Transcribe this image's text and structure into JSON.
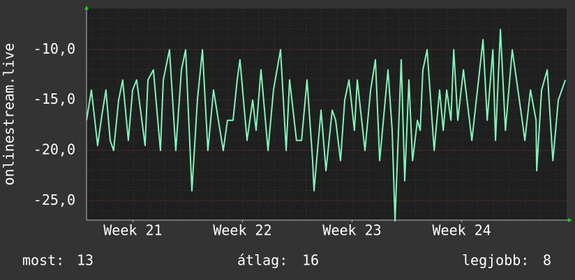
{
  "chart_data": {
    "type": "line",
    "y_label": "onlinestream.live",
    "x": [
      0.54,
      0.85,
      1.25,
      1.52,
      1.78,
      2.05,
      2.27,
      2.59,
      2.85,
      3.21,
      3.48,
      3.74,
      4.28,
      4.46,
      4.81,
      5.26,
      5.44,
      5.84,
      6.24,
      6.6,
      6.87,
      7.27,
      7.62,
      7.94,
      8.29,
      8.65,
      9.27,
      9.54,
      9.9,
      10.16,
      10.34,
      10.79,
      11.15,
      11.37,
      11.68,
      12.13,
      12.48,
      12.93,
      13.29,
      13.51,
      13.95,
      14.27,
      14.62,
      14.98,
      15.07,
      15.29,
      15.52,
      15.83,
      16.23,
      16.45,
      16.76,
      17.03,
      17.3,
      17.65,
      17.83,
      18.32,
      18.68,
      18.99,
      19.26,
      19.79,
      20.06,
      20.24,
      20.64,
      20.86,
      21.13,
      21.36,
      21.67,
      21.85,
      22.02,
      22.29,
      22.74,
      23.09,
      23.32,
      23.54,
      23.81,
      23.99,
      24.25,
      24.61,
      25.15,
      25.86,
      26.13,
      26.49,
      26.66,
      26.97,
      27.29,
      27.73,
      28.0,
      28.36,
      28.53,
      28.89,
      29.25,
      29.29,
      29.6,
      29.96,
      30.32,
      30.67,
      31.12
    ],
    "series": [
      {
        "color": "#80f5b8",
        "values": [
          -17,
          -14,
          -19.5,
          -16.5,
          -14,
          -19,
          -20,
          -15,
          -13,
          -19,
          -14,
          -13,
          -19.5,
          -13,
          -12,
          -20,
          -13,
          -10,
          -20,
          -12,
          -10,
          -24,
          -15,
          -10,
          -20,
          -14,
          -20,
          -17,
          -17,
          -13,
          -11,
          -19,
          -15,
          -18,
          -12,
          -20,
          -14,
          -10,
          -20,
          -13,
          -19,
          -19,
          -13,
          -21,
          -24,
          -20,
          -16,
          -22,
          -16,
          -17,
          -21,
          -15,
          -13,
          -18,
          -13,
          -20,
          -14,
          -11,
          -21,
          -12,
          -18,
          -27,
          -11,
          -23,
          -13,
          -21,
          -17,
          -18,
          -12,
          -10,
          -20,
          -14,
          -18,
          -14,
          -17,
          -10,
          -17,
          -12,
          -19,
          -9,
          -17,
          -10,
          -19,
          -8,
          -18,
          -10,
          -13,
          -17,
          -19,
          -14,
          -17,
          -22,
          -14,
          -12,
          -21,
          -15,
          -13
        ]
      }
    ],
    "xlim": [
      0.54,
      31.2
    ],
    "xticks": [
      {
        "value": 3.5,
        "label": "Week 21"
      },
      {
        "value": 10.5,
        "label": "Week 22"
      },
      {
        "value": 17.5,
        "label": "Week 23"
      },
      {
        "value": 24.5,
        "label": "Week 24"
      }
    ],
    "ylim": [
      -26.9,
      -5.9
    ],
    "yticks": [
      {
        "value": -25,
        "label": "-25,0"
      },
      {
        "value": -20,
        "label": "-20,0"
      },
      {
        "value": -15,
        "label": "-15,0"
      },
      {
        "value": -10,
        "label": "-10,0"
      }
    ],
    "grid": true,
    "stats": [
      {
        "label": "most:",
        "value": 13
      },
      {
        "label": "átlag:",
        "value": 16
      },
      {
        "label": "legjobb:",
        "value": 8
      }
    ]
  }
}
